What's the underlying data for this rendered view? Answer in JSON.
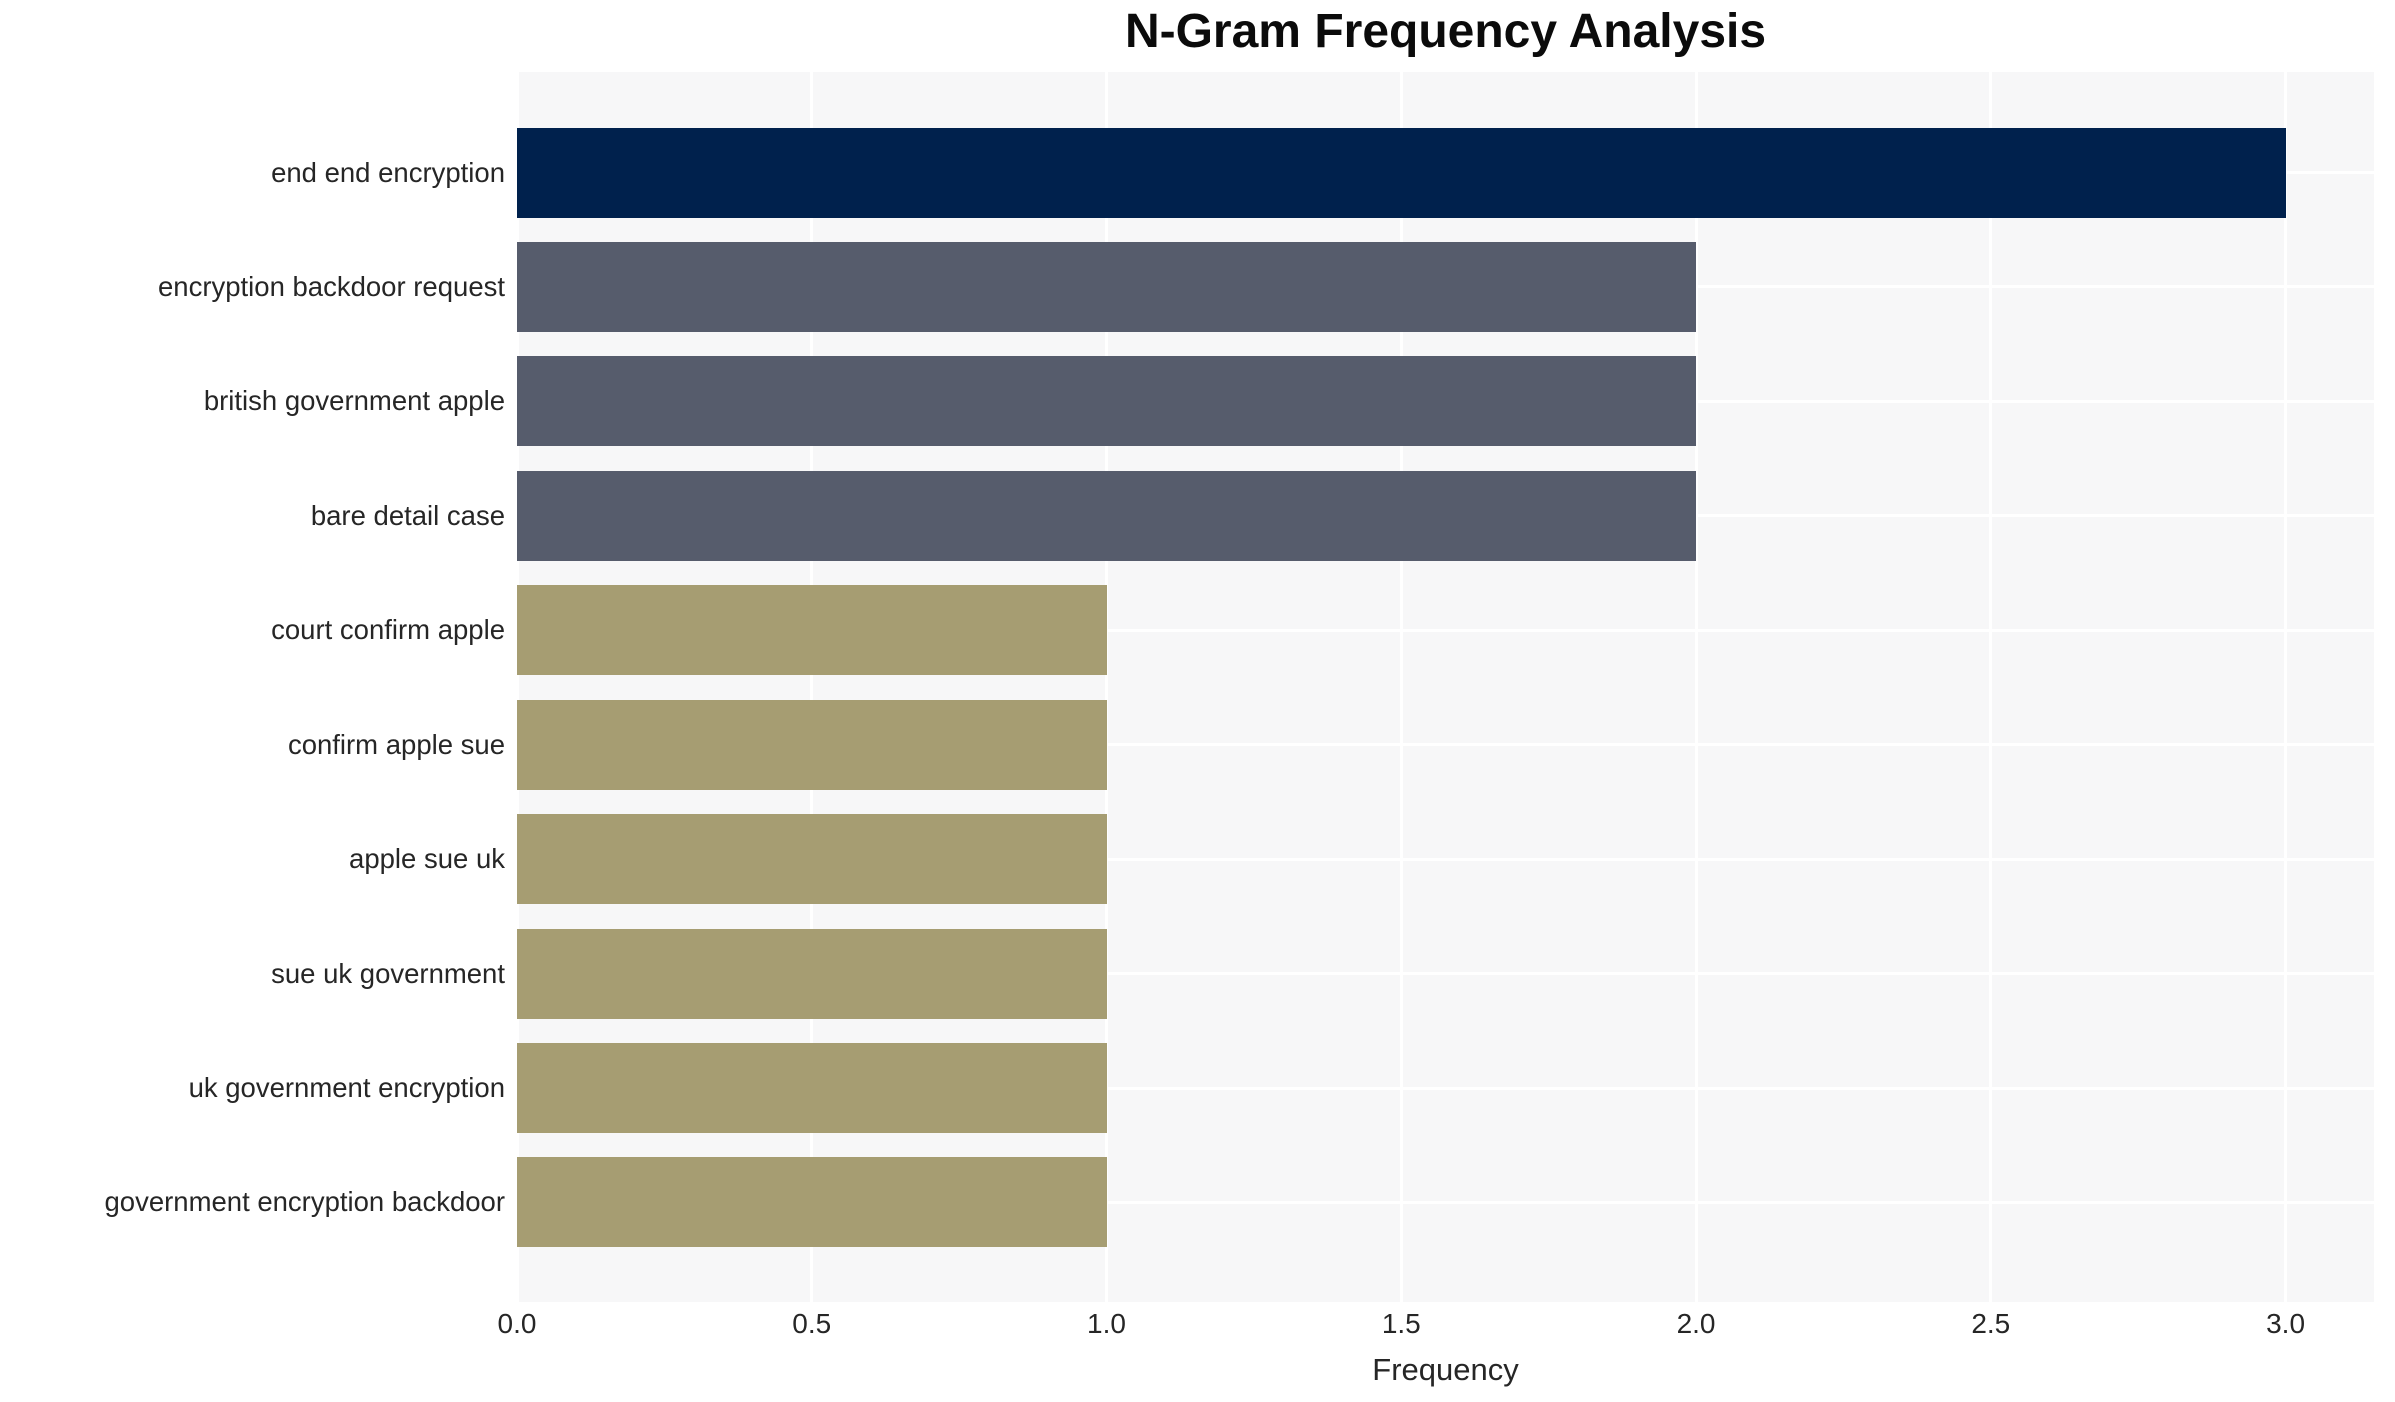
{
  "chart_data": {
    "type": "bar",
    "orientation": "horizontal",
    "title": "N-Gram Frequency Analysis",
    "xlabel": "Frequency",
    "ylabel": "",
    "categories": [
      "end end encryption",
      "encryption backdoor request",
      "british government apple",
      "bare detail case",
      "court confirm apple",
      "confirm apple sue",
      "apple sue uk",
      "sue uk government",
      "uk government encryption",
      "government encryption backdoor"
    ],
    "values": [
      3,
      2,
      2,
      2,
      1,
      1,
      1,
      1,
      1,
      1
    ],
    "bar_colors": [
      "#00214d",
      "#565c6c",
      "#565c6c",
      "#565c6c",
      "#a69d72",
      "#a69d72",
      "#a69d72",
      "#a69d72",
      "#a69d72",
      "#a69d72"
    ],
    "xticks": [
      "0.0",
      "0.5",
      "1.0",
      "1.5",
      "2.0",
      "2.5",
      "3.0"
    ],
    "xtick_values": [
      0,
      0.5,
      1,
      1.5,
      2,
      2.5,
      3
    ],
    "xlim": [
      0,
      3.15
    ],
    "grid": true,
    "grid_color": "#ffffff",
    "plot_background": "#f7f7f8",
    "figure_background": "#ffffff",
    "legend": null
  }
}
